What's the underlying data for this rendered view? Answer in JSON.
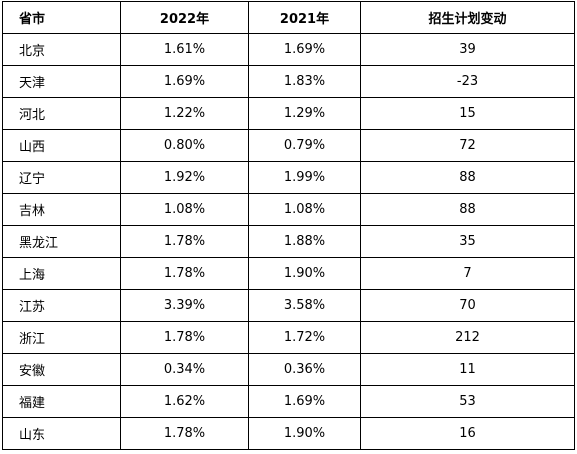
{
  "table": {
    "header": [
      "省市",
      "2022年",
      "2021年",
      "招生计划变动"
    ],
    "rows": [
      [
        "北京",
        "1.61%",
        "1.69%",
        "39"
      ],
      [
        "天津",
        "1.69%",
        "1.83%",
        "-23"
      ],
      [
        "河北",
        "1.22%",
        "1.29%",
        "15"
      ],
      [
        "山西",
        "0.80%",
        "0.79%",
        "72"
      ],
      [
        "辽宁",
        "1.92%",
        "1.99%",
        "88"
      ],
      [
        "吉林",
        "1.08%",
        "1.08%",
        "88"
      ],
      [
        "黑龙江",
        "1.78%",
        "1.88%",
        "35"
      ],
      [
        "上海",
        "1.78%",
        "1.90%",
        "7"
      ],
      [
        "江苏",
        "3.39%",
        "3.58%",
        "70"
      ],
      [
        "浙江",
        "1.78%",
        "1.72%",
        "212"
      ],
      [
        "安徽",
        "0.34%",
        "0.36%",
        "11"
      ],
      [
        "福建",
        "1.62%",
        "1.69%",
        "53"
      ],
      [
        "山东",
        "1.78%",
        "1.90%",
        "16"
      ]
    ]
  }
}
